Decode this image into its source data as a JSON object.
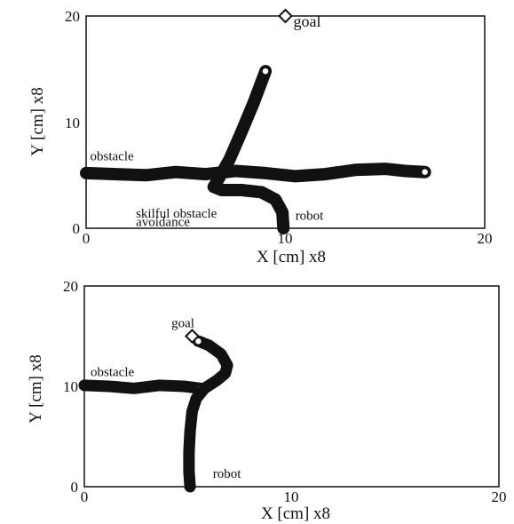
{
  "chart_data": [
    {
      "type": "line",
      "xlabel": "X [cm] x8",
      "ylabel": "Y [cm] x8",
      "xlim": [
        0,
        20
      ],
      "ylim": [
        0,
        20
      ],
      "x_ticks": [
        "0",
        "10",
        "20"
      ],
      "y_ticks": [
        "0",
        "10",
        "20"
      ],
      "grid": false,
      "annotations": [
        {
          "text": "goal",
          "x": 10.4,
          "y": 19.0
        },
        {
          "text": "obstacle",
          "x": 0.2,
          "y": 6.4
        },
        {
          "text": "skilful obstacle",
          "x": 2.5,
          "y": 1.0
        },
        {
          "text": "avoidance",
          "x": 2.5,
          "y": 0.2
        },
        {
          "text": "robot",
          "x": 10.5,
          "y": 0.8
        }
      ],
      "goal": {
        "x": 10,
        "y": 20
      },
      "series": [
        {
          "role": "obstacle",
          "points": [
            [
              0,
              5.2
            ],
            [
              1.5,
              5.1
            ],
            [
              3,
              5.0
            ],
            [
              4.5,
              5.3
            ],
            [
              6,
              5.1
            ],
            [
              7.5,
              5.4
            ],
            [
              9,
              5.2
            ],
            [
              10.5,
              4.9
            ],
            [
              12,
              5.1
            ],
            [
              13.5,
              5.5
            ],
            [
              15,
              5.6
            ],
            [
              16,
              5.4
            ],
            [
              17,
              5.3
            ]
          ]
        },
        {
          "role": "robot",
          "points": [
            [
              9.9,
              0
            ],
            [
              9.85,
              1.5
            ],
            [
              9.5,
              2.7
            ],
            [
              8.8,
              3.4
            ],
            [
              7.8,
              3.6
            ],
            [
              6.8,
              3.6
            ],
            [
              6.4,
              3.9
            ],
            [
              6.6,
              4.5
            ],
            [
              7.2,
              6.5
            ],
            [
              7.8,
              9.1
            ],
            [
              8.4,
              11.8
            ],
            [
              9.0,
              14.8
            ]
          ]
        }
      ]
    },
    {
      "type": "line",
      "xlabel": "X [cm] x8",
      "ylabel": "Y [cm] x8",
      "xlim": [
        0,
        20
      ],
      "ylim": [
        0,
        20
      ],
      "x_ticks": [
        "0",
        "10",
        "20"
      ],
      "y_ticks": [
        "0",
        "10",
        "20"
      ],
      "grid": false,
      "annotations": [
        {
          "text": "goal",
          "x": 4.2,
          "y": 15.9
        },
        {
          "text": "obstacle",
          "x": 0.3,
          "y": 11.0
        },
        {
          "text": "robot",
          "x": 6.2,
          "y": 0.9
        }
      ],
      "goal": {
        "x": 5.2,
        "y": 15
      },
      "series": [
        {
          "role": "obstacle",
          "points": [
            [
              0,
              10.1
            ],
            [
              1.2,
              10.0
            ],
            [
              2.4,
              9.8
            ],
            [
              3.6,
              10.1
            ],
            [
              4.8,
              10.0
            ],
            [
              5.6,
              9.8
            ]
          ]
        },
        {
          "role": "robot",
          "points": [
            [
              5.1,
              0
            ],
            [
              5.05,
              1.5
            ],
            [
              5.05,
              3.5
            ],
            [
              5.1,
              5.5
            ],
            [
              5.2,
              7.5
            ],
            [
              5.4,
              8.8
            ],
            [
              5.8,
              9.8
            ],
            [
              6.4,
              10.6
            ],
            [
              6.8,
              11.3
            ],
            [
              6.9,
              12.1
            ],
            [
              6.6,
              13.2
            ],
            [
              6.0,
              14.1
            ],
            [
              5.5,
              14.5
            ]
          ]
        }
      ]
    }
  ]
}
